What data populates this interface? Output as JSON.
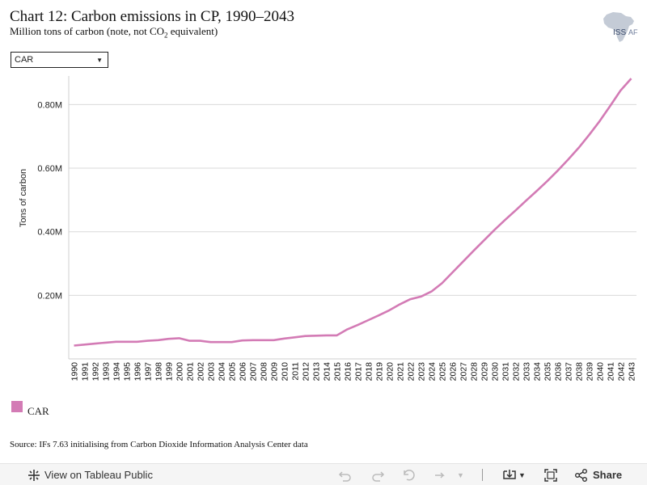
{
  "header": {
    "title": "Chart 12: Carbon emissions in CP, 1990–2043",
    "subtitle_pre": "Million tons of carbon (note, not CO",
    "subtitle_sub": "2",
    "subtitle_post": " equivalent)"
  },
  "logo": {
    "text_iss": "ISS",
    "text_af": "AF"
  },
  "filter": {
    "selected": "CAR"
  },
  "chart_data": {
    "type": "line",
    "title": "",
    "ylabel": "Tons of carbon",
    "xlabel": "",
    "ylim": [
      0,
      0.89
    ],
    "y_ticks": [
      0.2,
      0.4,
      0.6,
      0.8
    ],
    "y_tick_labels": [
      "0.20M",
      "0.40M",
      "0.60M",
      "0.80M"
    ],
    "grid": true,
    "legend_position": "bottom-left",
    "x": [
      1990,
      1991,
      1992,
      1993,
      1994,
      1995,
      1996,
      1997,
      1998,
      1999,
      2000,
      2001,
      2002,
      2003,
      2004,
      2005,
      2006,
      2007,
      2008,
      2009,
      2010,
      2011,
      2012,
      2013,
      2014,
      2015,
      2016,
      2017,
      2018,
      2019,
      2020,
      2021,
      2022,
      2023,
      2024,
      2025,
      2026,
      2027,
      2028,
      2029,
      2030,
      2031,
      2032,
      2033,
      2034,
      2035,
      2036,
      2037,
      2038,
      2039,
      2040,
      2041,
      2042,
      2043
    ],
    "series": [
      {
        "name": "CAR",
        "color": "#d37bb5",
        "values": [
          0.042,
          0.045,
          0.048,
          0.051,
          0.054,
          0.054,
          0.054,
          0.057,
          0.059,
          0.063,
          0.065,
          0.057,
          0.057,
          0.053,
          0.053,
          0.053,
          0.058,
          0.059,
          0.059,
          0.059,
          0.064,
          0.068,
          0.072,
          0.073,
          0.074,
          0.074,
          0.093,
          0.107,
          0.122,
          0.137,
          0.153,
          0.172,
          0.188,
          0.196,
          0.212,
          0.238,
          0.272,
          0.306,
          0.34,
          0.373,
          0.406,
          0.437,
          0.467,
          0.498,
          0.528,
          0.559,
          0.592,
          0.627,
          0.664,
          0.705,
          0.748,
          0.796,
          0.845,
          0.882
        ]
      }
    ]
  },
  "source": "Source: IFs 7.63 initialising from Carbon Dioxide Information Analysis Center data",
  "toolbar": {
    "view_label": "View on Tableau Public",
    "share_label": "Share"
  }
}
